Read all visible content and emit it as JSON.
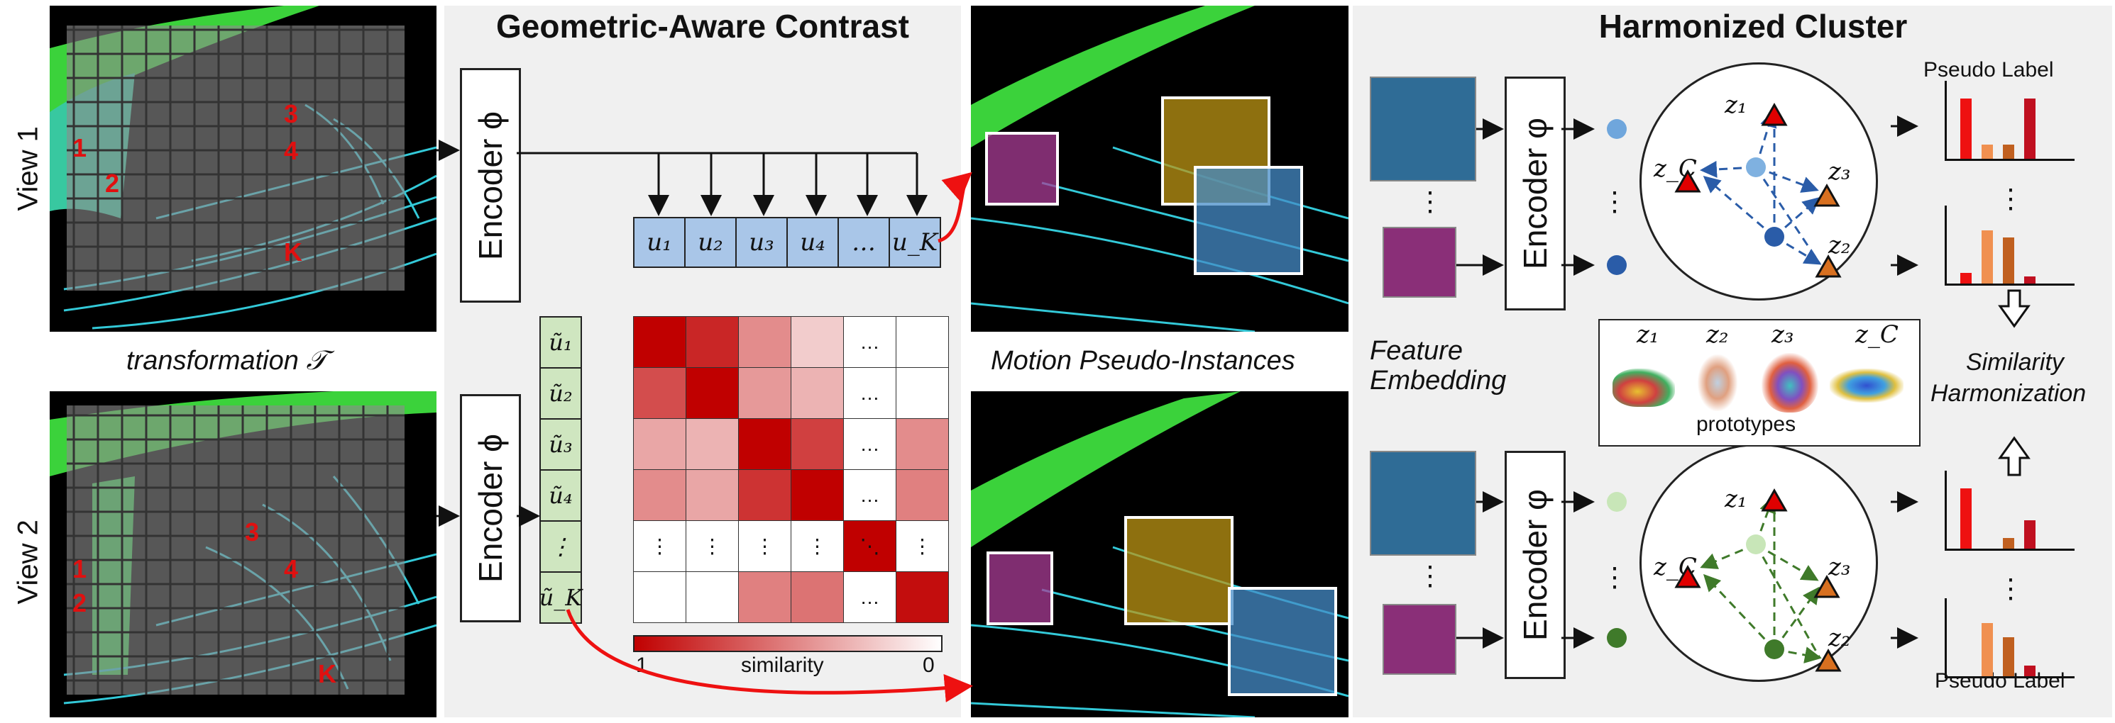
{
  "titles": {
    "geometric": "Geometric-Aware Contrast",
    "harmonized": "Harmonized Cluster"
  },
  "views": {
    "view1": "View 1",
    "view2": "View 2",
    "transformation": "transformation 𝒯"
  },
  "patch_labels": {
    "view1": [
      "1",
      "2",
      "3",
      "4",
      "K"
    ],
    "view2": [
      "1",
      "2",
      "3",
      "4",
      "K"
    ]
  },
  "encoder_phi": "Encoder ϕ",
  "encoder_varphi": "Encoder φ",
  "u_vector": [
    "u₁",
    "u₂",
    "u₃",
    "u₄",
    "…",
    "u_K"
  ],
  "u_tilde_vector": [
    "ũ₁",
    "ũ₂",
    "ũ₃",
    "ũ₄",
    "⋮",
    "ũ_K"
  ],
  "similarity_matrix": {
    "rows": [
      [
        1.0,
        0.85,
        0.45,
        0.2,
        null,
        0.0
      ],
      [
        0.7,
        1.0,
        0.4,
        0.3,
        null,
        0.0
      ],
      [
        0.35,
        0.3,
        1.0,
        0.75,
        null,
        0.45
      ],
      [
        0.45,
        0.35,
        0.8,
        1.0,
        null,
        0.5
      ],
      [
        null,
        null,
        null,
        null,
        1.0,
        null
      ],
      [
        0.0,
        0.0,
        0.5,
        0.55,
        null,
        0.95
      ]
    ],
    "ellipsis_h": "…",
    "ellipsis_v": "⋮",
    "ellipsis_d": "⋱",
    "colorbar_min_label": "1",
    "colorbar_label": "similarity",
    "colorbar_max_label": "0",
    "colors": {
      "high": "#c00000",
      "low": "#ffffff"
    }
  },
  "motion_label": "Motion Pseudo-Instances",
  "feature_embedding": [
    "Feature",
    "Embedding"
  ],
  "ellipsis_v": "⋮",
  "prototypes": {
    "labels": [
      "z₁",
      "z₂",
      "z₃",
      "z_C"
    ],
    "caption": "prototypes"
  },
  "cluster_labels": [
    "z₁",
    "z_C",
    "z₃",
    "z₂"
  ],
  "pseudo_label_top": "Pseudo Label",
  "pseudo_label_bottom": "Pseudo Label",
  "similarity_harmonization": [
    "Similarity",
    "Harmonization"
  ],
  "histograms": [
    [
      0.85,
      0.2,
      0.2,
      0.85
    ],
    [
      0.15,
      0.75,
      0.65,
      0.1
    ],
    [
      0.85,
      0.0,
      0.15,
      0.4
    ],
    [
      0.0,
      0.75,
      0.55,
      0.15
    ]
  ],
  "colors": {
    "u_blue": "#a9c6e8",
    "u_green": "#cfe6c0",
    "red_arrow": "#ee1111",
    "cluster_blue": "#2a5ca8",
    "cluster_green": "#3f7a2a",
    "proto_red": "#e00000",
    "proto_orange": "#d87020"
  }
}
